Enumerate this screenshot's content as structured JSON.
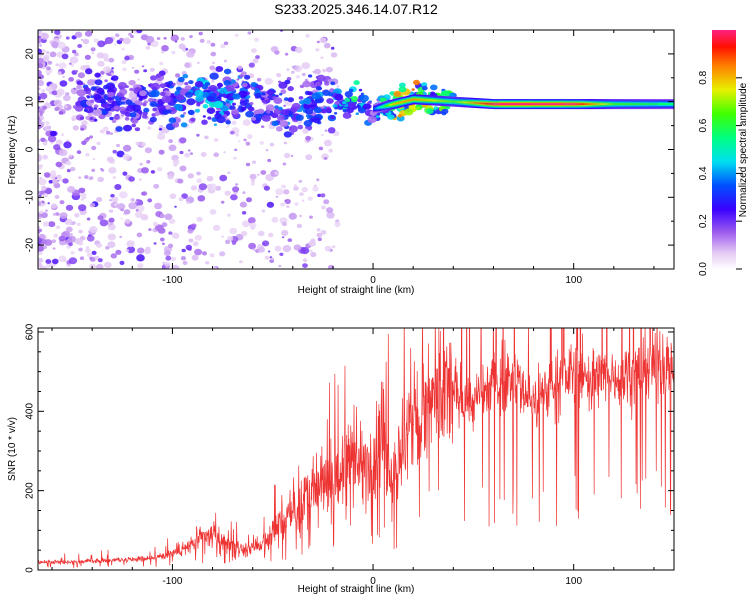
{
  "title": "S233.2025.346.14.07.R12",
  "chart_data": [
    {
      "type": "heatmap",
      "name": "spectrogram",
      "xlabel": "Height of straight line (km)",
      "ylabel": "Frequency (Hz)",
      "xlim": [
        -167,
        150
      ],
      "ylim": [
        -25,
        25
      ],
      "xticks": [
        -100,
        0,
        100
      ],
      "xtick_labels": [
        "-100",
        "0",
        "100"
      ],
      "yticks": [
        -20,
        -10,
        0,
        10,
        20
      ],
      "ytick_labels": [
        "-20",
        "-10",
        "0",
        "10",
        "20"
      ],
      "ridge": {
        "description": "dominant frequency track",
        "x": [
          -120,
          -100,
          -80,
          -60,
          -40,
          -20,
          -10,
          0,
          10,
          20,
          40,
          60,
          80,
          100,
          120,
          150
        ],
        "y": [
          10,
          10.5,
          11,
          10,
          9,
          9.5,
          10.5,
          8.5,
          9.5,
          10.5,
          10,
          9.5,
          9.5,
          9.5,
          9.5,
          9.5
        ],
        "amplitude": [
          0.3,
          0.35,
          0.45,
          0.35,
          0.35,
          0.4,
          0.55,
          0.3,
          0.75,
          0.8,
          0.6,
          0.95,
          0.95,
          0.95,
          0.6,
          0.5
        ]
      },
      "colorbar": {
        "label": "Normalized spectral amplitude",
        "range": [
          0,
          1
        ],
        "ticks": [
          0.0,
          0.2,
          0.4,
          0.6,
          0.8
        ],
        "tick_labels": [
          "0.0",
          "0.2",
          "0.4",
          "0.6",
          "0.8"
        ]
      }
    },
    {
      "type": "line",
      "name": "snr",
      "xlabel": "Height of straight line (km)",
      "ylabel": "SNR (10 * v/v)",
      "xlim": [
        -167,
        150
      ],
      "ylim": [
        0,
        610
      ],
      "xticks": [
        -100,
        0,
        100
      ],
      "xtick_labels": [
        "-100",
        "0",
        "100"
      ],
      "yticks": [
        0,
        200,
        400,
        600
      ],
      "ytick_labels": [
        "0",
        "200",
        "400",
        "600"
      ],
      "color": "#ee3333",
      "series": [
        {
          "name": "SNR",
          "x": [
            -167,
            -150,
            -130,
            -110,
            -95,
            -85,
            -80,
            -75,
            -65,
            -55,
            -45,
            -35,
            -25,
            -15,
            -10,
            -5,
            0,
            5,
            10,
            15,
            20,
            25,
            30,
            40,
            50,
            60,
            70,
            80,
            90,
            100,
            110,
            120,
            130,
            140,
            150
          ],
          "y": [
            20,
            20,
            25,
            30,
            50,
            80,
            90,
            70,
            50,
            70,
            120,
            170,
            210,
            240,
            300,
            250,
            300,
            320,
            230,
            320,
            370,
            390,
            420,
            450,
            420,
            470,
            490,
            420,
            470,
            500,
            480,
            490,
            500,
            520,
            520
          ]
        }
      ]
    }
  ]
}
